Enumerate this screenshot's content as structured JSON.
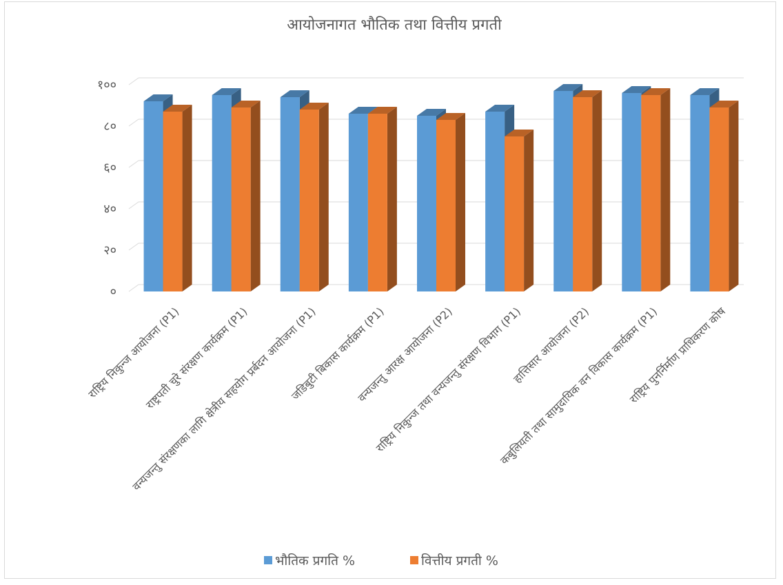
{
  "chart_data": {
    "type": "bar",
    "title": "आयोजनागत भौतिक तथा वित्तीय प्रगती",
    "categories": [
      "राष्ट्रिय निकुन्ज आयोजना (P1)",
      "राष्ट्रपती चुरे संरक्षण कार्यक्रम (P1)",
      "वन्यजन्तु संरक्षणका लागि क्षेत्रीय सहयोग प्रर्बदन आयोजना (P1)",
      "जडिबुटी बिकास कार्यक्रम (P1)",
      "वन्यजन्तु आरक्ष आयोजना (P2)",
      "राष्ट्रिय निकुन्ज तथा वन्यजन्तु संरक्षण विभाग (P1)",
      "हात्तिसार आयोजना (P2)",
      "कबुलियती तथा सामुदायिक वन विकास कार्यक्रम (P1)",
      "राष्ट्रिय पुनर्निर्माण  प्राधिकरण कोष"
    ],
    "series": [
      {
        "name": "भौतिक प्रगति %",
        "color": "#5B9BD5",
        "values": [
          92,
          95,
          94,
          86,
          85,
          87,
          97,
          96,
          95
        ]
      },
      {
        "name": "वित्तीय प्रगती %",
        "color": "#ED7D31",
        "values": [
          87,
          89,
          88,
          86,
          83,
          75,
          94,
          95,
          89
        ]
      }
    ],
    "yticks": [
      "०",
      "२०",
      "४०",
      "६०",
      "८०",
      "१००"
    ],
    "ylim": [
      0,
      100
    ],
    "grid": true,
    "legend_position": "bottom"
  }
}
